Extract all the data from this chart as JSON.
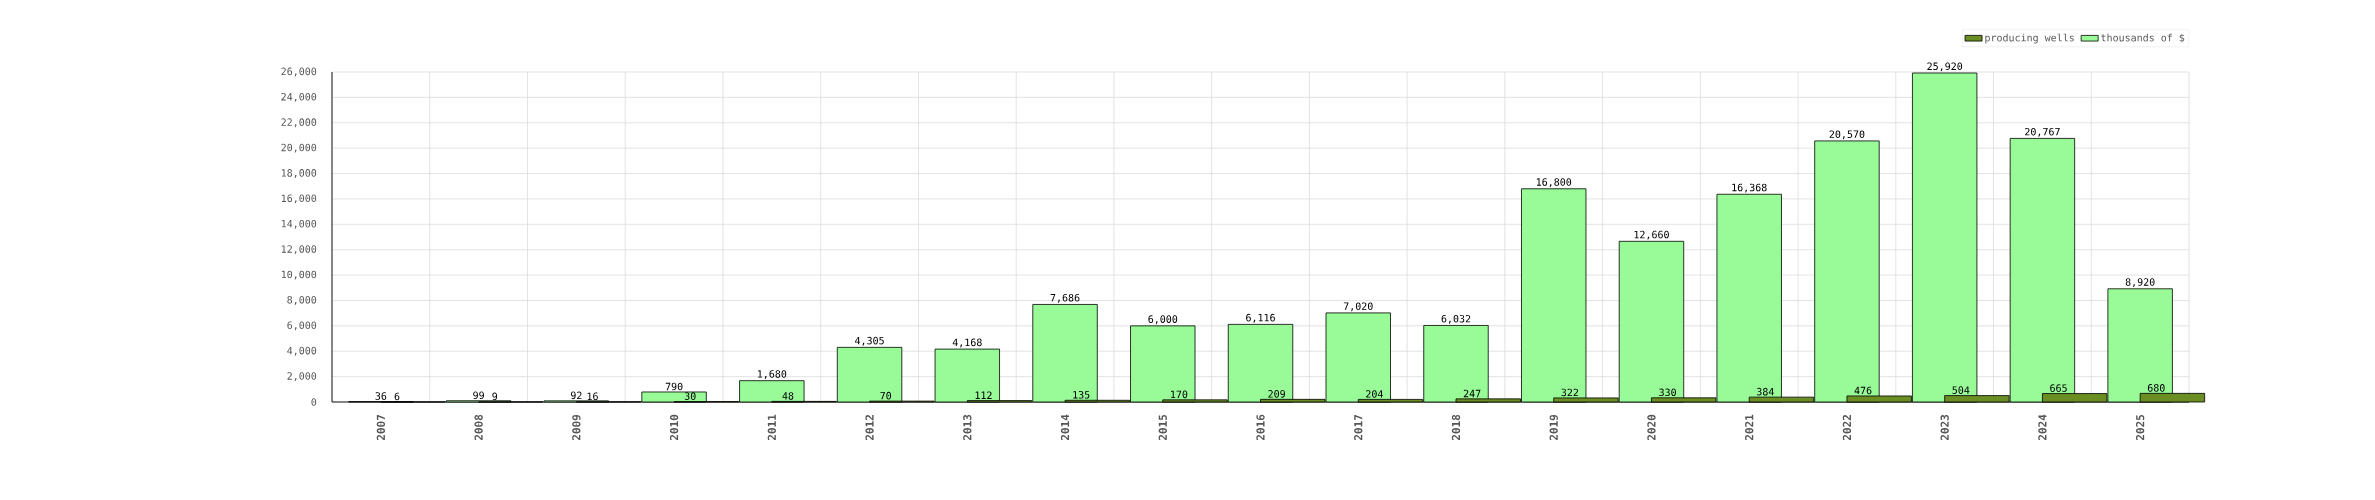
{
  "chart_data": {
    "type": "bar",
    "categories": [
      "2007",
      "2008",
      "2009",
      "2010",
      "2011",
      "2012",
      "2013",
      "2014",
      "2015",
      "2016",
      "2017",
      "2018",
      "2019",
      "2020",
      "2021",
      "2022",
      "2023",
      "2024",
      "2025"
    ],
    "series": [
      {
        "name": "producing wells",
        "color": "#6b8e23",
        "values": [
          6,
          9,
          16,
          30,
          48,
          70,
          112,
          135,
          170,
          209,
          204,
          247,
          322,
          330,
          384,
          476,
          504,
          665,
          680
        ],
        "value_labels": [
          "6",
          "9",
          "16",
          "30",
          "48",
          "70",
          "112",
          "135",
          "170",
          "209",
          "204",
          "247",
          "322",
          "330",
          "384",
          "476",
          "504",
          "665",
          "680"
        ]
      },
      {
        "name": "thousands of $",
        "color": "#98fb98",
        "values": [
          36,
          99,
          92,
          790,
          1680,
          4305,
          4168,
          7686,
          6000,
          6116,
          7020,
          6032,
          16800,
          12660,
          16368,
          20570,
          25920,
          20767,
          8920
        ],
        "value_labels": [
          "36",
          "99",
          "92",
          "790",
          "1,680",
          "4,305",
          "4,168",
          "7,686",
          "6,000",
          "6,116",
          "7,020",
          "6,032",
          "16,800",
          "12,660",
          "16,368",
          "20,570",
          "25,920",
          "20,767",
          "8,920"
        ]
      }
    ],
    "ylim": [
      0,
      26000
    ],
    "yticks": [
      0,
      {
        "value": 2000,
        "label": "2,000"
      },
      {
        "value": 4000,
        "label": "4,000"
      },
      {
        "value": 6000,
        "label": "6,000"
      },
      {
        "value": 8000,
        "label": "8,000"
      },
      {
        "value": 10000,
        "label": "10,000"
      },
      {
        "value": 12000,
        "label": "12,000"
      },
      {
        "value": 14000,
        "label": "14,000"
      },
      {
        "value": 16000,
        "label": "16,000"
      },
      {
        "value": 18000,
        "label": "18,000"
      },
      {
        "value": 20000,
        "label": "20,000"
      },
      {
        "value": 22000,
        "label": "22,000"
      },
      {
        "value": 24000,
        "label": "24,000"
      },
      {
        "value": 26000,
        "label": "26,000"
      }
    ],
    "grid": true,
    "legend": "top right"
  }
}
